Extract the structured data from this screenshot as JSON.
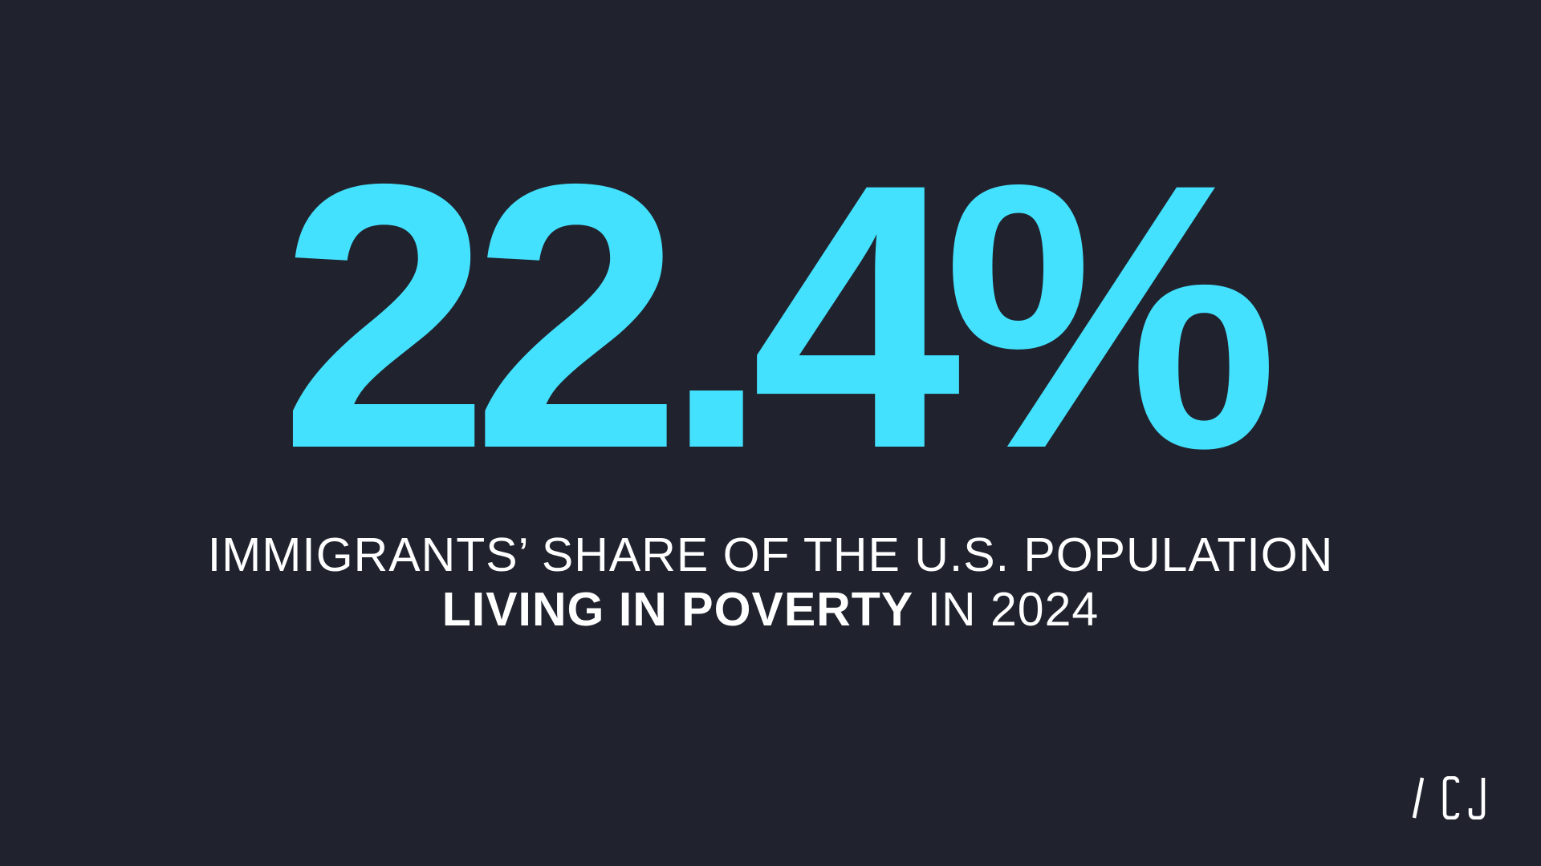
{
  "headline": {
    "stat": "22.4%",
    "color": "#43e1fd"
  },
  "caption": {
    "line1": "IMMIGRANTS’ SHARE OF THE U.S. POPULATION",
    "line2_bold": "LIVING IN POVERTY",
    "line2_rest": " IN 2024"
  },
  "logo": {
    "name": "CJ",
    "icon": "slash-cj-logo"
  },
  "colors": {
    "background": "#20232e",
    "accent": "#43e1fd",
    "text": "#ffffff"
  }
}
